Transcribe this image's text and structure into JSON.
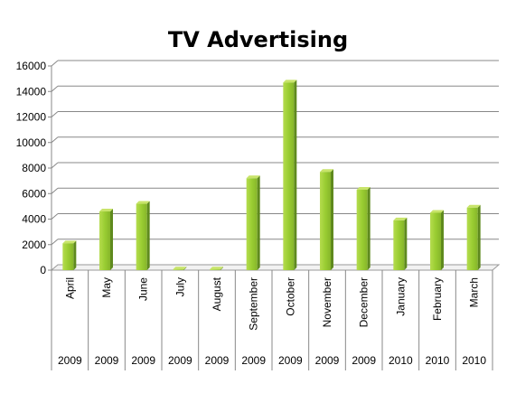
{
  "chart_data": {
    "type": "bar",
    "title": "TV Advertising",
    "xlabel": "",
    "ylabel": "",
    "categories": [
      "April",
      "May",
      "June",
      "July",
      "August",
      "September",
      "October",
      "November",
      "December",
      "January",
      "February",
      "March"
    ],
    "years": [
      "2009",
      "2009",
      "2009",
      "2009",
      "2009",
      "2009",
      "2009",
      "2009",
      "2009",
      "2010",
      "2010",
      "2010"
    ],
    "values": [
      2100,
      4600,
      5200,
      50,
      50,
      7200,
      14700,
      7700,
      6300,
      3900,
      4500,
      4900
    ],
    "ylim": [
      0,
      16000
    ],
    "yticks": [
      0,
      2000,
      4000,
      6000,
      8000,
      10000,
      12000,
      14000,
      16000
    ],
    "grid": true,
    "legend": "none",
    "bar_color": "#9acd32"
  }
}
